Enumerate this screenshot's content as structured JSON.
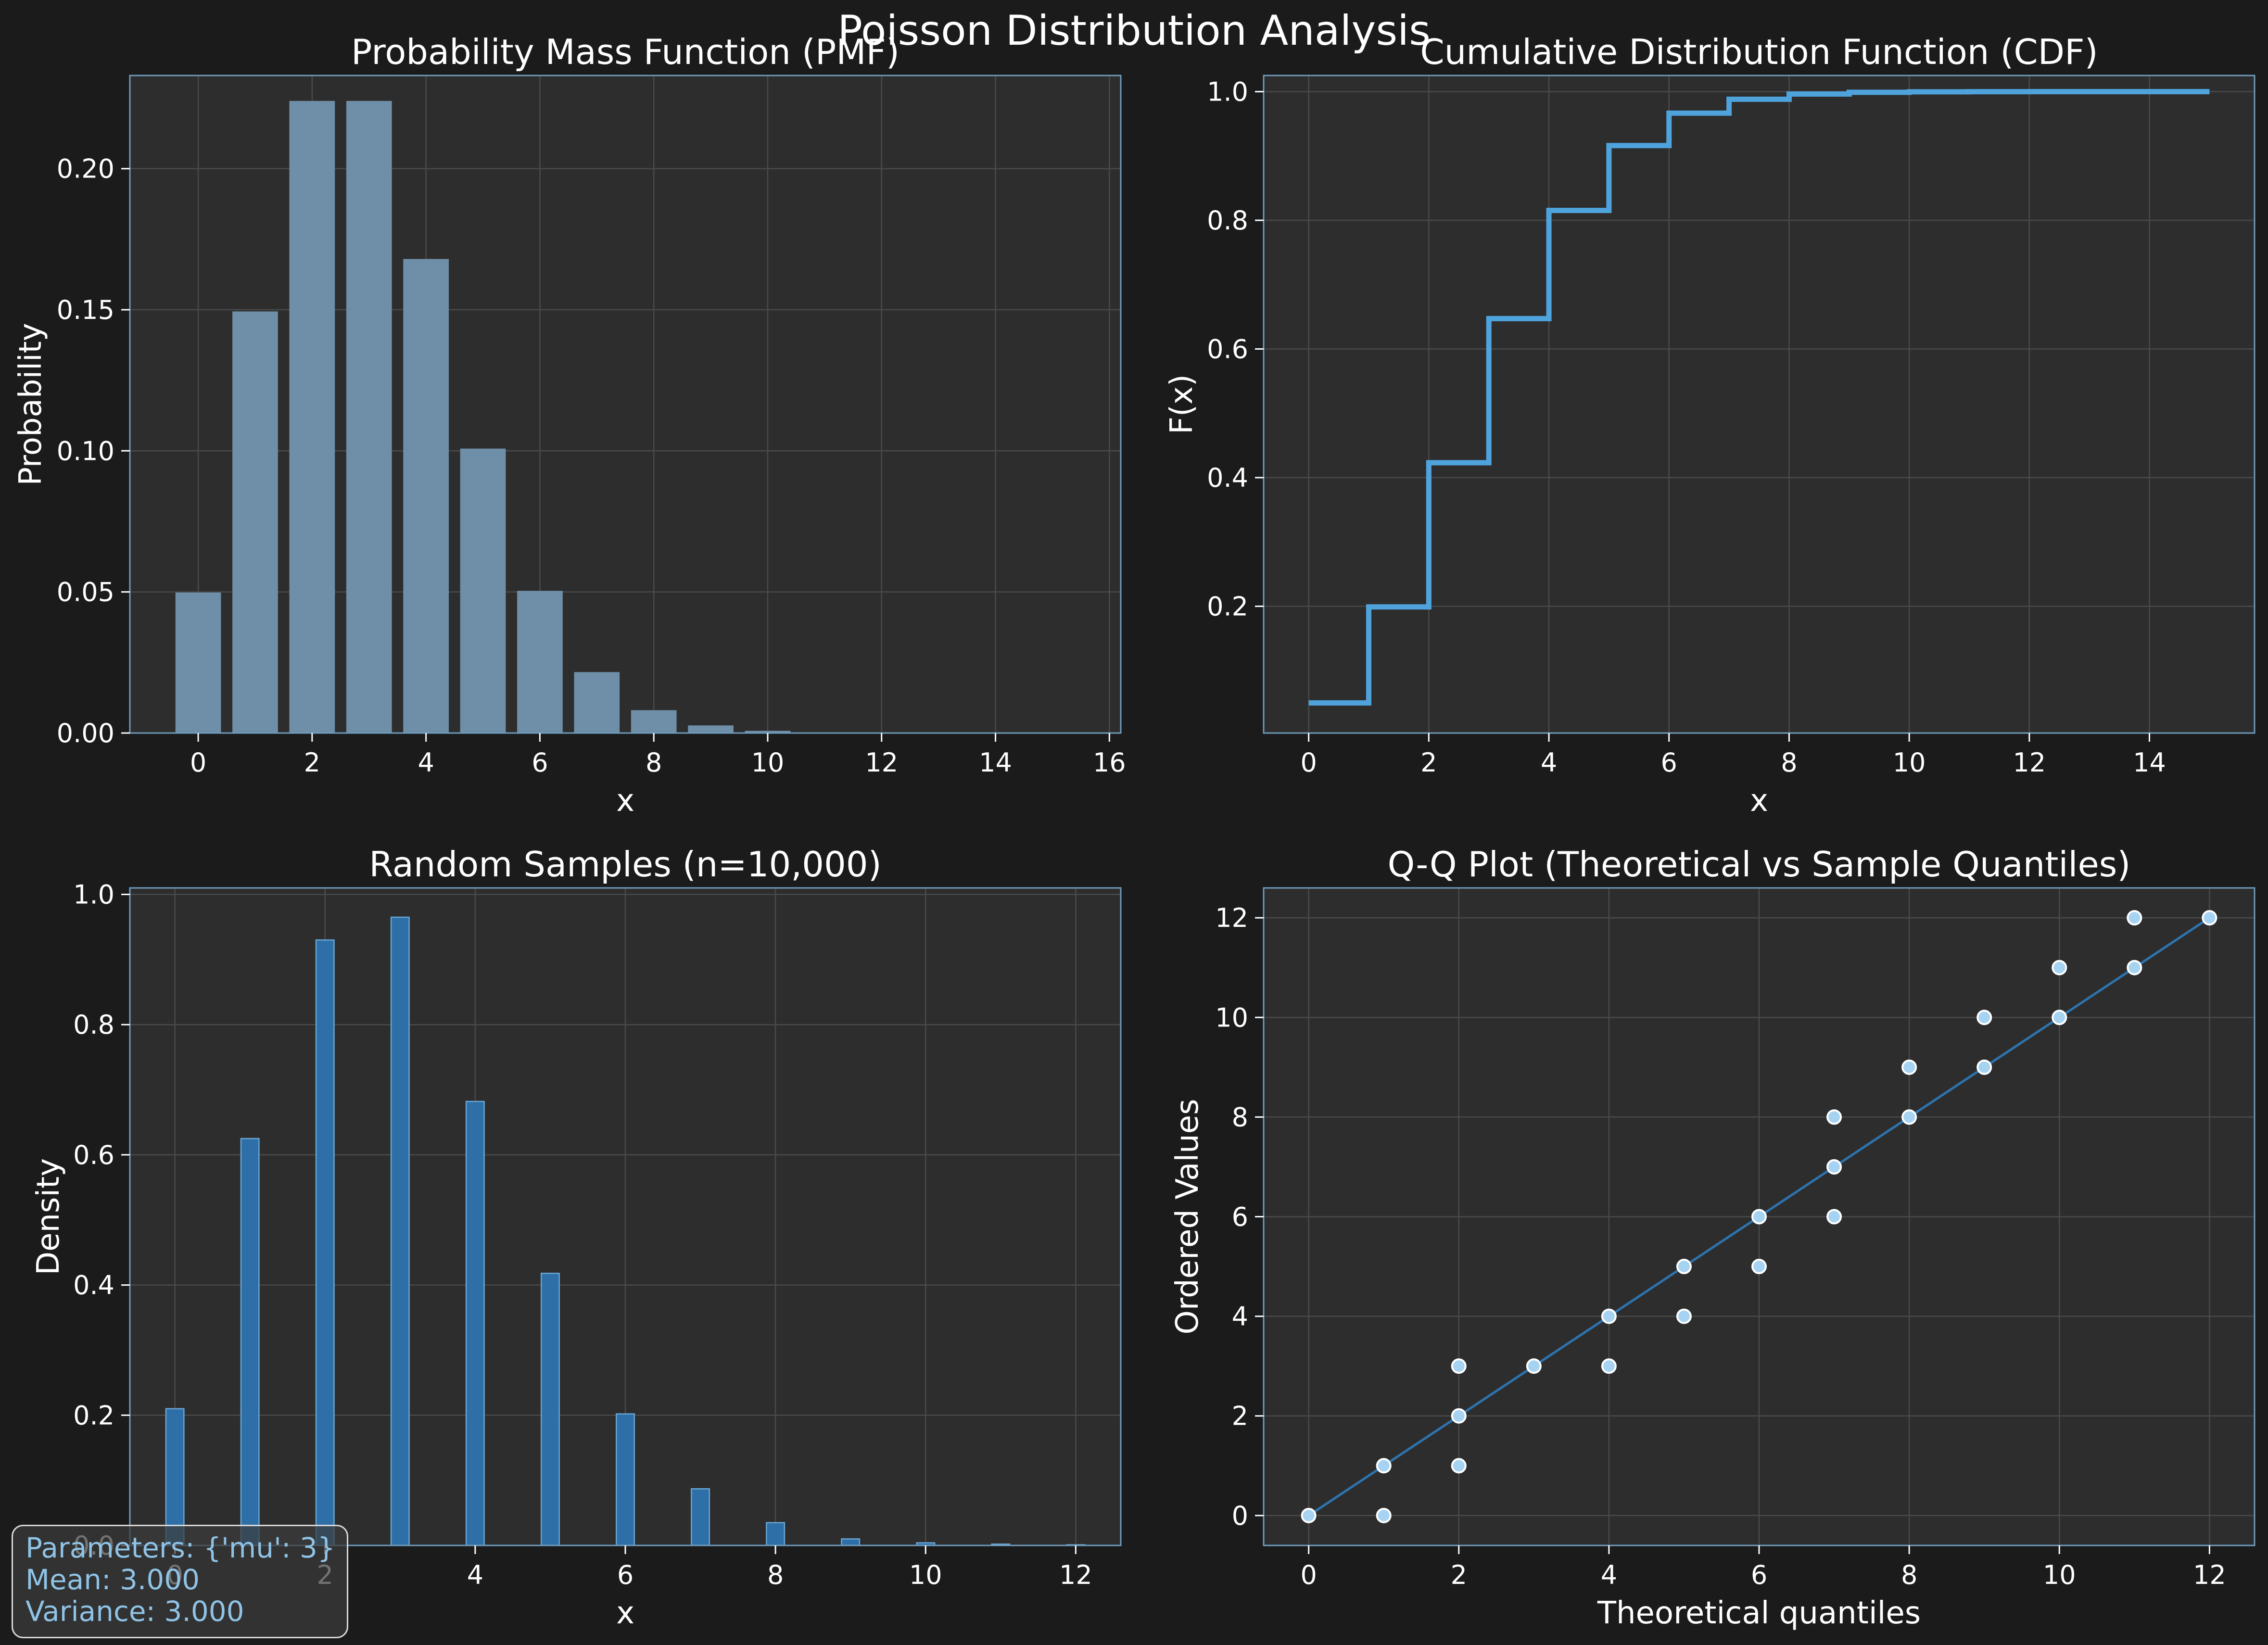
{
  "figure": {
    "suptitle": "Poisson Distribution Analysis",
    "background_color": "#1b1b1b",
    "axes_color": "#2d2d2d",
    "spine_color": "#6e9bbc",
    "grid_color": "#4a4a4a",
    "text_color": "#ffffff"
  },
  "info_box": {
    "parameters": "Parameters: {'mu': 3}",
    "mean": "Mean: 3.000",
    "variance": "Variance: 3.000",
    "text_color": "#8fc3e6"
  },
  "chart_data": [
    {
      "id": "pmf",
      "type": "bar",
      "title": "Probability Mass Function (PMF)",
      "xlabel": "x",
      "ylabel": "Probability",
      "xlim": [
        -1.2,
        16.2
      ],
      "ylim": [
        0,
        0.233
      ],
      "xticks": [
        0,
        2,
        4,
        6,
        8,
        10,
        12,
        14,
        16
      ],
      "yticks": [
        0.0,
        0.05,
        0.1,
        0.15,
        0.2
      ],
      "ytick_labels": [
        "0.00",
        "0.05",
        "0.10",
        "0.15",
        "0.20"
      ],
      "grid": true,
      "bar_color": "#6f8fa8",
      "x": [
        0,
        1,
        2,
        3,
        4,
        5,
        6,
        7,
        8,
        9,
        10,
        11,
        12,
        13,
        14,
        15
      ],
      "values": [
        0.0498,
        0.1494,
        0.224,
        0.224,
        0.168,
        0.1008,
        0.0504,
        0.0216,
        0.0081,
        0.0027,
        0.0008,
        0.0002,
        0.0001,
        0.0,
        0.0,
        0.0
      ]
    },
    {
      "id": "cdf",
      "type": "line",
      "title": "Cumulative Distribution Function (CDF)",
      "xlabel": "x",
      "ylabel": "F(x)",
      "xlim": [
        -0.75,
        15.75
      ],
      "ylim": [
        0.003,
        1.025
      ],
      "xticks": [
        0,
        2,
        4,
        6,
        8,
        10,
        12,
        14
      ],
      "yticks": [
        0.2,
        0.4,
        0.6,
        0.8,
        1.0
      ],
      "ytick_labels": [
        "0.2",
        "0.4",
        "0.6",
        "0.8",
        "1.0"
      ],
      "grid": true,
      "line_color": "#4fa3dc",
      "step": "post",
      "x": [
        0,
        1,
        2,
        3,
        4,
        5,
        6,
        7,
        8,
        9,
        10,
        11,
        12,
        13,
        14,
        15
      ],
      "values": [
        0.0498,
        0.1991,
        0.4232,
        0.6472,
        0.8153,
        0.9161,
        0.9665,
        0.9881,
        0.9962,
        0.9989,
        0.9997,
        0.9999,
        1.0,
        1.0,
        1.0,
        1.0
      ]
    },
    {
      "id": "samples",
      "type": "bar",
      "title": "Random Samples (n=10,000)",
      "xlabel": "x",
      "ylabel": "Density",
      "xlim": [
        -0.6,
        12.6
      ],
      "ylim": [
        0,
        1.01
      ],
      "xticks": [
        0,
        2,
        4,
        6,
        8,
        10,
        12
      ],
      "yticks": [
        0.0,
        0.2,
        0.4,
        0.6,
        0.8,
        1.0
      ],
      "ytick_labels": [
        "0.0",
        "0.2",
        "0.4",
        "0.6",
        "0.8",
        "1.0"
      ],
      "grid": true,
      "bar_color": "#2d6fa6",
      "bar_width": 0.24,
      "x": [
        0,
        1,
        2,
        3,
        4,
        5,
        6,
        7,
        8,
        9,
        10,
        11,
        12
      ],
      "values": [
        0.21,
        0.625,
        0.93,
        0.965,
        0.682,
        0.418,
        0.202,
        0.087,
        0.035,
        0.01,
        0.004,
        0.002,
        0.001
      ]
    },
    {
      "id": "qq",
      "type": "scatter",
      "title": "Q-Q Plot (Theoretical vs Sample Quantiles)",
      "xlabel": "Theoretical quantiles",
      "ylabel": "Ordered Values",
      "xlim": [
        -0.6,
        12.6
      ],
      "ylim": [
        -0.6,
        12.6
      ],
      "xticks": [
        0,
        2,
        4,
        6,
        8,
        10,
        12
      ],
      "yticks": [
        0,
        2,
        4,
        6,
        8,
        10,
        12
      ],
      "ytick_labels": [
        "0",
        "2",
        "4",
        "6",
        "8",
        "10",
        "12"
      ],
      "grid": true,
      "point_color": "#a7d3f2",
      "line_color": "#2d73ad",
      "reference_line": [
        [
          0,
          0
        ],
        [
          12,
          12
        ]
      ],
      "points": [
        [
          0,
          0
        ],
        [
          1,
          0
        ],
        [
          1,
          1
        ],
        [
          2,
          1
        ],
        [
          2,
          2
        ],
        [
          2,
          3
        ],
        [
          3,
          3
        ],
        [
          4,
          3
        ],
        [
          4,
          4
        ],
        [
          5,
          4
        ],
        [
          5,
          5
        ],
        [
          6,
          5
        ],
        [
          6,
          6
        ],
        [
          7,
          6
        ],
        [
          7,
          7
        ],
        [
          7,
          8
        ],
        [
          8,
          8
        ],
        [
          8,
          9
        ],
        [
          9,
          9
        ],
        [
          9,
          10
        ],
        [
          10,
          10
        ],
        [
          10,
          11
        ],
        [
          11,
          11
        ],
        [
          11,
          12
        ],
        [
          12,
          12
        ]
      ]
    }
  ]
}
